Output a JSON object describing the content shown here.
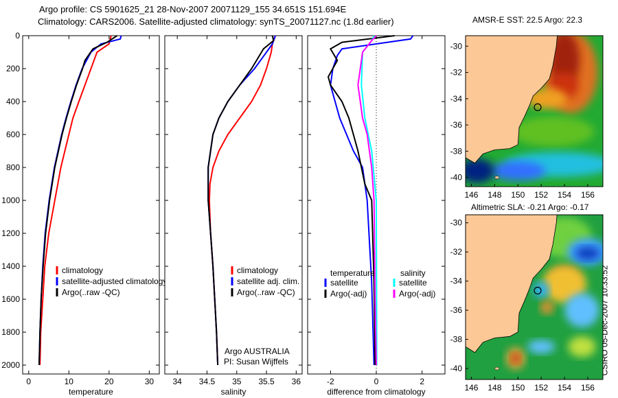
{
  "title_line1": "Argo profile: CS 5901625_21 28-Nov-2007 20071129_155 34.651S 151.694E",
  "title_line2": "Climatology: CARS2006. Satellite-adjusted climatology: synTS_20071127.nc (1.8d earlier)",
  "side_text": "CSIRO 05-Dec-2007 10:33:52",
  "colors": {
    "red": "#ff0000",
    "blue": "#0000ff",
    "black": "#000000",
    "cyan": "#00ffff",
    "magenta": "#ff00ff",
    "land": "#fcc896"
  },
  "chart_data": [
    {
      "type": "line",
      "id": "temp",
      "xlabel": "temperature",
      "xlim": [
        -1.5,
        32.5
      ],
      "ylim": [
        0,
        2054
      ],
      "xticks": [
        0,
        10,
        20,
        30
      ],
      "yticks": [
        0,
        200,
        400,
        600,
        800,
        1000,
        1200,
        1400,
        1600,
        1800,
        2000
      ],
      "legend": [
        "climatology",
        "satellite-adjusted climatology",
        "Argo(..raw -QC)"
      ],
      "series": [
        {
          "name": "climatology",
          "color": "red",
          "depth": [
            0,
            50,
            100,
            200,
            300,
            400,
            500,
            600,
            800,
            1000,
            1200,
            1400,
            1600,
            1800,
            2000
          ],
          "values": [
            20.5,
            20,
            17,
            15.5,
            14,
            12.5,
            11,
            10,
            8,
            6.5,
            5,
            4,
            3.5,
            3,
            2.8
          ]
        },
        {
          "name": "satellite-adjusted climatology",
          "color": "blue",
          "depth": [
            0,
            20,
            50,
            100,
            200,
            300,
            400,
            500,
            600,
            800,
            1000,
            1200,
            1400,
            1600,
            1800,
            2000
          ],
          "values": [
            23,
            22.8,
            18,
            15.5,
            13.3,
            11.8,
            10.5,
            9.3,
            8.2,
            6.4,
            5.1,
            4.1,
            3.5,
            3.1,
            2.8,
            2.6
          ]
        },
        {
          "name": "Argo(..raw -QC)",
          "color": "black",
          "depth": [
            0,
            40,
            80,
            150,
            200,
            300,
            400,
            500,
            600,
            800,
            1000,
            1200,
            1400,
            1600,
            1800,
            2000
          ],
          "values": [
            22,
            19.5,
            16,
            14,
            13.4,
            11.9,
            10.6,
            9.4,
            8.3,
            6.5,
            5.2,
            4.2,
            3.6,
            3.1,
            2.8,
            2.6
          ]
        }
      ]
    },
    {
      "type": "line",
      "id": "sal",
      "xlabel": "salinity",
      "xlim": [
        33.79,
        36.1
      ],
      "ylim": [
        0,
        2054
      ],
      "xticks": [
        34,
        34.5,
        35,
        35.5,
        36
      ],
      "legend": [
        "climatology",
        "satellite adj. clim.",
        "Argo(..raw -QC)"
      ],
      "annotation": [
        "Argo AUSTRALIA",
        "PI: Susan Wijffels"
      ],
      "series": [
        {
          "name": "climatology",
          "color": "red",
          "depth": [
            0,
            50,
            100,
            200,
            300,
            400,
            500,
            600,
            700,
            800,
            900,
            1000,
            1200,
            1400,
            1600,
            1800,
            2000
          ],
          "values": [
            35.65,
            35.6,
            35.58,
            35.5,
            35.4,
            35.25,
            35.05,
            34.85,
            34.7,
            34.6,
            34.55,
            34.54,
            34.56,
            34.6,
            34.63,
            34.66,
            34.68
          ]
        },
        {
          "name": "satellite adj. clim.",
          "color": "blue",
          "depth": [
            0,
            50,
            100,
            200,
            300,
            400,
            500,
            600,
            800,
            1000,
            1200,
            1400,
            1600,
            1800,
            2000
          ],
          "values": [
            35.65,
            35.6,
            35.5,
            35.3,
            35.05,
            34.85,
            34.7,
            34.6,
            34.52,
            34.52,
            34.56,
            34.6,
            34.63,
            34.66,
            34.68
          ]
        },
        {
          "name": "Argo(..raw -QC)",
          "color": "black",
          "depth": [
            0,
            30,
            80,
            200,
            300,
            400,
            500,
            600,
            800,
            1000,
            1200,
            1400,
            1600,
            1800,
            2000
          ],
          "values": [
            35.6,
            35.62,
            35.45,
            35.25,
            35.05,
            34.85,
            34.7,
            34.6,
            34.52,
            34.52,
            34.56,
            34.6,
            34.63,
            34.66,
            34.68
          ]
        }
      ]
    },
    {
      "type": "line",
      "id": "diff",
      "xlabel": "difference from climatology",
      "xlim": [
        -3,
        3
      ],
      "ylim": [
        0,
        2054
      ],
      "xticks": [
        -2,
        0,
        2
      ],
      "legend_headers": [
        "temperature",
        "salinity"
      ],
      "legend": [
        "satellite",
        "Argo(-adj)",
        "satellite",
        "Argo(-adj)"
      ],
      "series": [
        {
          "name": "temperature satellite",
          "color": "blue",
          "depth": [
            0,
            20,
            50,
            80,
            120,
            200,
            300,
            400,
            500,
            600,
            700,
            800,
            1000,
            1500,
            2000
          ],
          "values": [
            1.6,
            1.5,
            0,
            -1.5,
            -1.7,
            -1.9,
            -2.0,
            -1.8,
            -1.6,
            -1.3,
            -1.0,
            -0.6,
            -0.4,
            -0.2,
            -0.1
          ]
        },
        {
          "name": "temperature Argo(-adj)",
          "color": "black",
          "depth": [
            0,
            40,
            80,
            150,
            250,
            300,
            400,
            500,
            700,
            900,
            1000,
            1500,
            2000
          ],
          "values": [
            0.8,
            -1.5,
            -2.0,
            -1.7,
            -2.1,
            -2.0,
            -1.5,
            -1.2,
            -0.8,
            -0.5,
            -0.2,
            -0.1,
            -0.05
          ]
        },
        {
          "name": "salinity satellite",
          "color": "cyan",
          "depth": [
            0,
            30,
            100,
            300,
            500,
            700,
            1000,
            2000
          ],
          "values": [
            -0.1,
            -0.2,
            -0.6,
            -0.65,
            -0.5,
            -0.2,
            0,
            0.02
          ]
        },
        {
          "name": "salinity Argo(-adj)",
          "color": "magenta",
          "depth": [
            0,
            30,
            100,
            200,
            300,
            400,
            500,
            600,
            800,
            1000,
            1600,
            2000
          ],
          "values": [
            0,
            -0.2,
            -0.6,
            -0.7,
            -0.8,
            -0.7,
            -0.6,
            -0.4,
            -0.2,
            -0.1,
            -0.05,
            0
          ]
        }
      ]
    }
  ],
  "maps": [
    {
      "id": "sst",
      "title": "AMSR-E SST: 22.5 Argo: 22.3",
      "lon_ticks": [
        146,
        148,
        150,
        152,
        154,
        156
      ],
      "lat_ticks": [
        -30,
        -32,
        -34,
        -36,
        -38,
        -40
      ],
      "argo_lon": 151.694,
      "argo_lat": -34.651
    },
    {
      "id": "sla",
      "title": "Altimetric SLA: -0.21 Argo: -0.17",
      "lon_ticks": [
        146,
        148,
        150,
        152,
        154,
        156
      ],
      "lat_ticks": [
        -30,
        -32,
        -34,
        -36,
        -38,
        -40
      ],
      "argo_lon": 151.694,
      "argo_lat": -34.651
    }
  ]
}
